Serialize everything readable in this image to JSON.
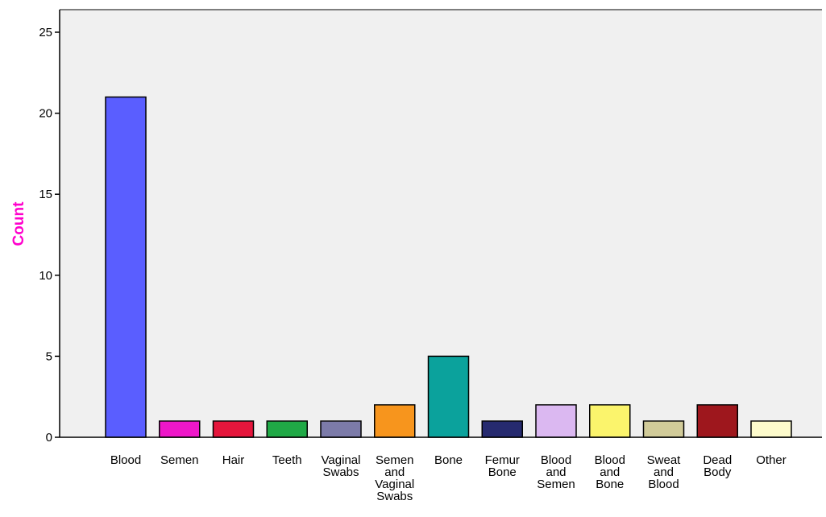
{
  "chart_data": {
    "type": "bar",
    "ylabel": "Count",
    "xlabel": "",
    "ylim": [
      0,
      25
    ],
    "yticks": [
      "0",
      "5",
      "10",
      "15",
      "20",
      "25"
    ],
    "grid": false,
    "categories": [
      "Blood",
      "Semen",
      "Hair",
      "Teeth",
      "Vaginal Swabs",
      "Semen and Vaginal Swabs",
      "Bone",
      "Femur Bone",
      "Blood and Semen",
      "Blood and Bone",
      "Sweat and Blood",
      "Dead Body",
      "Other"
    ],
    "values": [
      21,
      1,
      1,
      1,
      1,
      2,
      5,
      1,
      2,
      2,
      1,
      2,
      1
    ],
    "colors": [
      "#5a5eff",
      "#ee17c9",
      "#e5163c",
      "#20a946",
      "#7c7ba9",
      "#f7951d",
      "#0ba29c",
      "#262a6f",
      "#dbb8f1",
      "#fbf46c",
      "#d1cb99",
      "#9e171d",
      "#fdfbcc"
    ],
    "ylabel_color": "#ff00cc",
    "plot_background": "#f0f0f0"
  }
}
